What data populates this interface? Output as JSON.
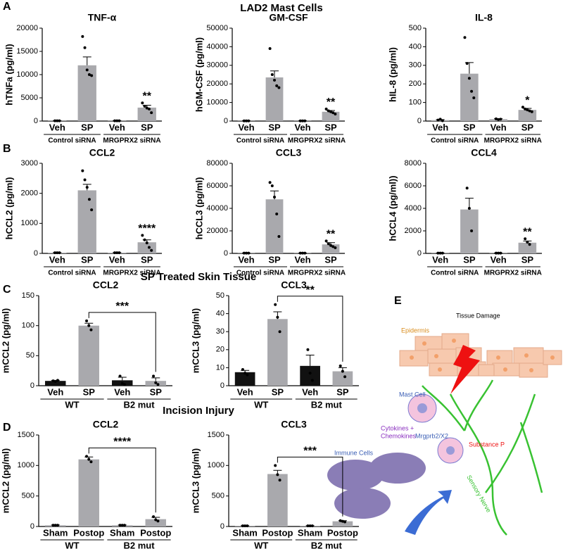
{
  "panel_labels": [
    "A",
    "B",
    "C",
    "D",
    "E"
  ],
  "section_titles": [
    "LAD2 Mast Cells",
    "SP Treated Skin Tissue",
    "Incision Injury"
  ],
  "chart_data": [
    {
      "type": "bar",
      "title": "TNF-α",
      "y_label": "hTNFa (pg/ml)",
      "categories": [
        "Veh",
        "SP",
        "Veh",
        "SP"
      ],
      "groups": [
        "Control siRNA",
        "MRGPRX2 siRNA"
      ],
      "values": [
        50,
        12000,
        50,
        2900
      ],
      "errors": [
        20,
        1800,
        20,
        500
      ],
      "points": [
        [
          50,
          50,
          50
        ],
        [
          18200,
          15800,
          11000,
          10000,
          9800
        ],
        [
          50,
          50,
          50
        ],
        [
          3900,
          3200,
          2800,
          2600,
          1800
        ]
      ],
      "colors": [
        "#a9a9ad",
        "#a9a9ad",
        "#a9a9ad",
        "#a9a9ad"
      ],
      "ylim": [
        0,
        20000
      ],
      "yticks": [
        0,
        5000,
        10000,
        15000,
        20000
      ],
      "significance": {
        "text": "**",
        "style": "above"
      }
    },
    {
      "type": "bar",
      "title": "GM-CSF",
      "y_label": "hGM-CSF (pg/ml)",
      "categories": [
        "Veh",
        "SP",
        "Veh",
        "SP"
      ],
      "groups": [
        "Control siRNA",
        "MRGPRX2 siRNA"
      ],
      "values": [
        100,
        23500,
        100,
        5000
      ],
      "errors": [
        50,
        3500,
        50,
        700
      ],
      "points": [
        [
          100,
          100,
          100
        ],
        [
          39000,
          25000,
          22000,
          19000,
          18000
        ],
        [
          100,
          100,
          100
        ],
        [
          6500,
          5500,
          5000,
          4500,
          3800
        ]
      ],
      "colors": [
        "#a9a9ad",
        "#a9a9ad",
        "#a9a9ad",
        "#a9a9ad"
      ],
      "ylim": [
        0,
        50000
      ],
      "yticks": [
        0,
        10000,
        20000,
        30000,
        40000,
        50000
      ],
      "significance": {
        "text": "**",
        "style": "above"
      }
    },
    {
      "type": "bar",
      "title": "IL-8",
      "y_label": "hIL-8 (pg/ml)",
      "categories": [
        "Veh",
        "SP",
        "Veh",
        "SP"
      ],
      "groups": [
        "Control siRNA",
        "MRGPRX2 siRNA"
      ],
      "values": [
        5,
        255,
        10,
        60
      ],
      "errors": [
        3,
        60,
        3,
        8
      ],
      "points": [
        [
          5,
          10,
          2
        ],
        [
          450,
          310,
          230,
          160,
          125
        ],
        [
          12,
          8,
          10
        ],
        [
          75,
          65,
          60,
          55,
          50
        ]
      ],
      "colors": [
        "#a9a9ad",
        "#a9a9ad",
        "#a9a9ad",
        "#a9a9ad"
      ],
      "ylim": [
        0,
        500
      ],
      "yticks": [
        0,
        100,
        200,
        300,
        400,
        500
      ],
      "significance": {
        "text": "*",
        "style": "above"
      }
    },
    {
      "type": "bar",
      "title": "CCL2",
      "y_label": "hCCL2 (pg/ml)",
      "categories": [
        "Veh",
        "SP",
        "Veh",
        "SP"
      ],
      "groups": [
        "Control siRNA",
        "MRGPRX2 siRNA"
      ],
      "values": [
        20,
        2100,
        20,
        370
      ],
      "errors": [
        10,
        200,
        10,
        80
      ],
      "points": [
        [
          20,
          20,
          20
        ],
        [
          2750,
          2450,
          2200,
          1800,
          1450
        ],
        [
          20,
          20,
          20
        ],
        [
          600,
          450,
          350,
          200,
          100
        ]
      ],
      "colors": [
        "#a9a9ad",
        "#a9a9ad",
        "#a9a9ad",
        "#a9a9ad"
      ],
      "ylim": [
        0,
        3000
      ],
      "yticks": [
        0,
        1000,
        2000,
        3000
      ],
      "significance": {
        "text": "****",
        "style": "above"
      }
    },
    {
      "type": "bar",
      "title": "CCL3",
      "y_label": "hCCL3 (pg/ml)",
      "categories": [
        "Veh",
        "SP",
        "Veh",
        "SP"
      ],
      "groups": [
        "Control siRNA",
        "MRGPRX2 siRNA"
      ],
      "values": [
        200,
        48000,
        200,
        8000
      ],
      "errors": [
        100,
        7500,
        100,
        1500
      ],
      "points": [
        [
          200,
          200,
          200
        ],
        [
          63000,
          60000,
          50000,
          35000,
          15000
        ],
        [
          200,
          200,
          200
        ],
        [
          11000,
          8500,
          7000,
          6000,
          5000
        ]
      ],
      "colors": [
        "#a9a9ad",
        "#a9a9ad",
        "#a9a9ad",
        "#a9a9ad"
      ],
      "ylim": [
        0,
        80000
      ],
      "yticks": [
        0,
        20000,
        40000,
        60000,
        80000
      ],
      "significance": {
        "text": "**",
        "style": "above"
      }
    },
    {
      "type": "bar",
      "title": "CCL4",
      "y_label": "hCCL4 (pg/ml))",
      "categories": [
        "Veh",
        "SP",
        "Veh",
        "SP"
      ],
      "groups": [
        "Control siRNA",
        "MRGPRX2 siRNA"
      ],
      "values": [
        20,
        3900,
        20,
        950
      ],
      "errors": [
        10,
        1000,
        10,
        150
      ],
      "points": [
        [
          20,
          20,
          20
        ],
        [
          5800,
          4000,
          2000
        ],
        [
          20,
          20,
          20
        ],
        [
          1300,
          1000,
          800
        ]
      ],
      "colors": [
        "#a9a9ad",
        "#a9a9ad",
        "#a9a9ad",
        "#a9a9ad"
      ],
      "ylim": [
        0,
        8000
      ],
      "yticks": [
        0,
        2000,
        4000,
        6000,
        8000
      ],
      "significance": {
        "text": "**",
        "style": "above"
      }
    },
    {
      "type": "bar",
      "title": "CCL2",
      "y_label": "mCCL2 (pg/ml)",
      "categories": [
        "Veh",
        "SP",
        "Veh",
        "SP"
      ],
      "groups": [
        "WT",
        "B2 mut"
      ],
      "values": [
        8,
        100,
        9,
        8
      ],
      "errors": [
        1,
        4,
        5,
        5
      ],
      "points": [
        [
          8,
          7,
          9
        ],
        [
          108,
          100,
          93
        ],
        [
          16,
          4,
          2
        ],
        [
          16,
          5,
          2
        ]
      ],
      "colors": [
        "#111111",
        "#a9a9ad",
        "#111111",
        "#a9a9ad"
      ],
      "ylim": [
        0,
        150
      ],
      "yticks": [
        0,
        50,
        100,
        150
      ],
      "significance": {
        "text": "***",
        "style": "bracket"
      }
    },
    {
      "type": "bar",
      "title": "CCL3",
      "y_label": "mCCL3 (pg/ml)",
      "categories": [
        "Veh",
        "SP",
        "Veh",
        "SP"
      ],
      "groups": [
        "WT",
        "B2 mut"
      ],
      "values": [
        7.5,
        37,
        11,
        8
      ],
      "errors": [
        1,
        4,
        6,
        2
      ],
      "points": [
        [
          9,
          7,
          6
        ],
        [
          45,
          38,
          30
        ],
        [
          20,
          7,
          3
        ],
        [
          11,
          8,
          5
        ]
      ],
      "colors": [
        "#111111",
        "#a9a9ad",
        "#111111",
        "#a9a9ad"
      ],
      "ylim": [
        0,
        50
      ],
      "yticks": [
        0,
        10,
        20,
        30,
        40,
        50
      ],
      "significance": {
        "text": "**",
        "style": "bracket"
      }
    },
    {
      "type": "bar",
      "title": "CCL2",
      "y_label": "mCCL2 (pg/ml)",
      "categories": [
        "Sham",
        "Postop",
        "Sham",
        "Postop"
      ],
      "groups": [
        "WT",
        "B2 mut"
      ],
      "values": [
        20,
        1100,
        20,
        120
      ],
      "errors": [
        5,
        40,
        5,
        30
      ],
      "points": [
        [
          20,
          20,
          20
        ],
        [
          1150,
          1100,
          1060
        ],
        [
          20,
          20,
          20
        ],
        [
          160,
          110,
          90
        ]
      ],
      "colors": [
        "#a9a9ad",
        "#a9a9ad",
        "#a9a9ad",
        "#a9a9ad"
      ],
      "ylim": [
        0,
        1500
      ],
      "yticks": [
        0,
        500,
        1000,
        1500
      ],
      "significance": {
        "text": "****",
        "style": "bracket"
      }
    },
    {
      "type": "bar",
      "title": "CCL3",
      "y_label": "mCCL3 (pg/ml)",
      "categories": [
        "Sham",
        "Postop",
        "Sham",
        "Postop"
      ],
      "groups": [
        "WT",
        "B2 mut"
      ],
      "values": [
        10,
        860,
        10,
        85
      ],
      "errors": [
        3,
        60,
        3,
        10
      ],
      "points": [
        [
          10,
          10,
          10
        ],
        [
          1000,
          850,
          760
        ],
        [
          10,
          10,
          10
        ],
        [
          95,
          85,
          75
        ]
      ],
      "colors": [
        "#a9a9ad",
        "#a9a9ad",
        "#a9a9ad",
        "#a9a9ad"
      ],
      "ylim": [
        0,
        1500
      ],
      "yticks": [
        0,
        500,
        1000,
        1500
      ],
      "significance": {
        "text": "***",
        "style": "bracket"
      }
    }
  ],
  "diagram": {
    "epidermis": "Epidermis",
    "tissue_damage": "Tissue Damage",
    "mast_cell": "Mast Cell",
    "cytokines": "Cytokines +",
    "chemokines": "Chemokines",
    "receptor": "Mrgprb2/X2",
    "substance_p": "Substance P",
    "immune_cells": "Immune Cells",
    "sensory_nerve": "Sensory Nerve"
  }
}
